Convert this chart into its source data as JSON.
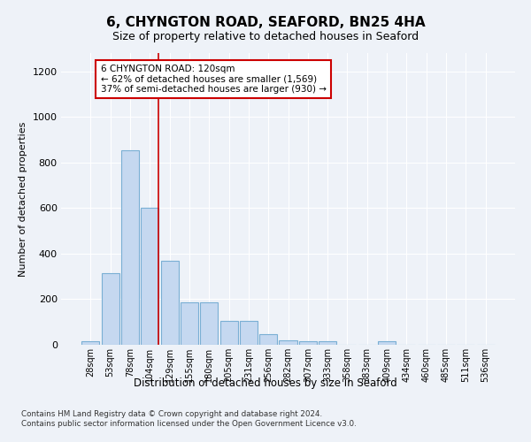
{
  "title1": "6, CHYNGTON ROAD, SEAFORD, BN25 4HA",
  "title2": "Size of property relative to detached houses in Seaford",
  "xlabel": "Distribution of detached houses by size in Seaford",
  "ylabel": "Number of detached properties",
  "categories": [
    "28sqm",
    "53sqm",
    "78sqm",
    "104sqm",
    "129sqm",
    "155sqm",
    "180sqm",
    "205sqm",
    "231sqm",
    "256sqm",
    "282sqm",
    "307sqm",
    "333sqm",
    "358sqm",
    "383sqm",
    "409sqm",
    "434sqm",
    "460sqm",
    "485sqm",
    "511sqm",
    "536sqm"
  ],
  "values": [
    15,
    315,
    855,
    600,
    370,
    185,
    185,
    105,
    105,
    45,
    20,
    15,
    15,
    0,
    0,
    15,
    0,
    0,
    0,
    0,
    0
  ],
  "bar_color": "#c5d8f0",
  "bar_edge_color": "#7aafd4",
  "vline_x_index": 3,
  "vline_color": "#cc0000",
  "annotation_line1": "6 CHYNGTON ROAD: 120sqm",
  "annotation_line2": "← 62% of detached houses are smaller (1,569)",
  "annotation_line3": "37% of semi-detached houses are larger (930) →",
  "annotation_box_facecolor": "#ffffff",
  "annotation_box_edgecolor": "#cc0000",
  "ylim": [
    0,
    1280
  ],
  "yticks": [
    0,
    200,
    400,
    600,
    800,
    1000,
    1200
  ],
  "footer1": "Contains HM Land Registry data © Crown copyright and database right 2024.",
  "footer2": "Contains public sector information licensed under the Open Government Licence v3.0.",
  "bg_color": "#eef2f8",
  "grid_color": "#ffffff",
  "title1_fontsize": 11,
  "title2_fontsize": 9
}
